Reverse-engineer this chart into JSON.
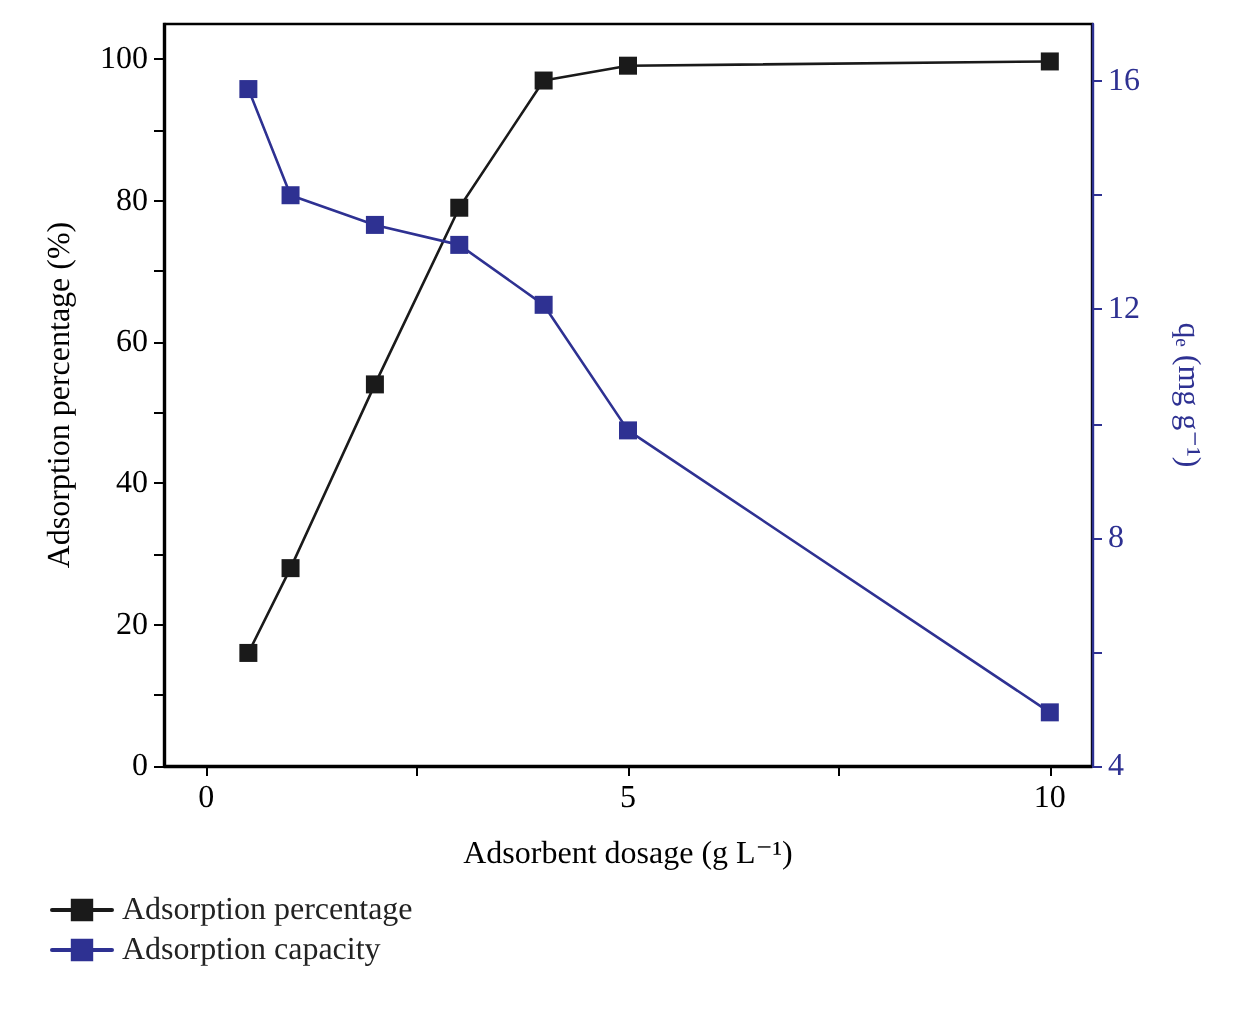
{
  "chart_data": {
    "type": "line",
    "xlabel": "Adsorbent dosage (g L⁻¹)",
    "ylabel": "Adsorption percentage (%)",
    "y2label": "qₑ (mg g⁻¹)",
    "xlim": [
      -0.5,
      10.5
    ],
    "xticks": [
      0,
      {
        "value": 2.5,
        "label": null
      },
      5,
      {
        "value": 7.5,
        "label": null
      },
      10
    ],
    "ylim": [
      0,
      105
    ],
    "yticks": [
      0,
      {
        "value": 10,
        "label": null
      },
      20,
      {
        "value": 30,
        "label": null
      },
      40,
      {
        "value": 50,
        "label": null
      },
      60,
      {
        "value": 70,
        "label": null
      },
      80,
      {
        "value": 90,
        "label": null
      },
      100
    ],
    "y2lim": [
      4,
      17
    ],
    "y2ticks": [
      4,
      {
        "value": 6,
        "label": null
      },
      8,
      {
        "value": 10,
        "label": null
      },
      12,
      {
        "value": 14,
        "label": null
      },
      16
    ],
    "x": [
      0.5,
      1,
      2,
      3,
      4,
      5,
      10
    ],
    "series": [
      {
        "name": "Adsorption percentage",
        "color": "#1a1a1a",
        "values": [
          16,
          28,
          54,
          79,
          97,
          99.1,
          99.7
        ]
      },
      {
        "name": "Adsorption capacity",
        "color": "#2e3192",
        "axis": "y2",
        "values": [
          15.86,
          14.0,
          13.48,
          13.13,
          12.08,
          9.88,
          4.94
        ]
      }
    ],
    "marker": "square",
    "line_style": "solid",
    "grid": false,
    "legend": "bottom left"
  }
}
